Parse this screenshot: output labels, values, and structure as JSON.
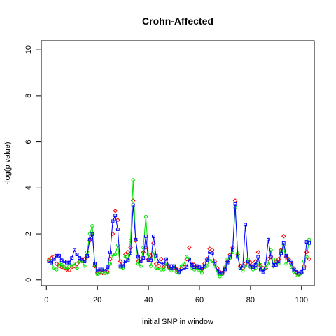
{
  "chart_data": {
    "type": "scatter",
    "title": "Crohn-Affected",
    "xlabel": "initial SNP in window",
    "ylabel": "-log(p value)",
    "xlim": [
      -2,
      105
    ],
    "ylim": [
      -0.25,
      10.4
    ],
    "xticks": [
      0,
      20,
      40,
      60,
      80,
      100
    ],
    "yticks": [
      0,
      2,
      4,
      6,
      8,
      10
    ],
    "grid": false,
    "legend": "none",
    "series": [
      {
        "color": "#ff0000",
        "marker": "diamond",
        "lines": false,
        "x": [
          1,
          2,
          3,
          4,
          5,
          6,
          7,
          8,
          9,
          10,
          11,
          12,
          13,
          14,
          15,
          16,
          17,
          18,
          19,
          20,
          21,
          22,
          23,
          24,
          25,
          26,
          27,
          28,
          29,
          30,
          31,
          32,
          33,
          34,
          35,
          36,
          37,
          38,
          39,
          40,
          41,
          42,
          43,
          44,
          45,
          46,
          47,
          48,
          49,
          50,
          51,
          52,
          53,
          54,
          55,
          56,
          57,
          58,
          59,
          60,
          61,
          62,
          63,
          64,
          65,
          66,
          67,
          68,
          69,
          70,
          71,
          72,
          73,
          74,
          75,
          76,
          77,
          78,
          79,
          80,
          81,
          82,
          83,
          84,
          85,
          86,
          87,
          88,
          89,
          90,
          91,
          92,
          93,
          94,
          95,
          96,
          97,
          98,
          99,
          100,
          101,
          102,
          103
        ],
        "y": [
          0.85,
          0.95,
          1.0,
          0.7,
          0.6,
          0.55,
          0.5,
          0.45,
          0.42,
          0.55,
          0.6,
          0.7,
          0.8,
          0.85,
          0.9,
          1.0,
          1.7,
          1.95,
          0.6,
          0.3,
          0.35,
          0.3,
          0.3,
          0.35,
          0.9,
          2.0,
          3.0,
          2.6,
          0.8,
          0.7,
          1.1,
          1.2,
          1.4,
          3.45,
          1.7,
          0.8,
          0.9,
          1.2,
          1.4,
          0.9,
          1.05,
          1.6,
          0.7,
          0.6,
          0.9,
          0.55,
          0.7,
          0.55,
          0.6,
          0.5,
          0.45,
          0.4,
          0.5,
          0.55,
          0.9,
          1.4,
          0.7,
          0.65,
          0.55,
          0.5,
          0.45,
          0.7,
          0.9,
          1.35,
          1.3,
          0.8,
          0.5,
          0.35,
          0.3,
          0.5,
          0.8,
          1.1,
          1.4,
          3.45,
          1.1,
          0.6,
          0.5,
          0.7,
          0.8,
          0.75,
          0.6,
          0.8,
          1.2,
          0.6,
          0.5,
          0.5,
          0.9,
          1.0,
          0.6,
          0.8,
          0.9,
          1.3,
          1.9,
          1.0,
          0.9,
          0.7,
          0.5,
          0.3,
          0.25,
          0.3,
          0.6,
          1.2,
          0.9
        ]
      },
      {
        "color": "#00e000",
        "marker": "circle",
        "lines": true,
        "x": [
          1,
          2,
          3,
          4,
          5,
          6,
          7,
          8,
          9,
          10,
          11,
          12,
          13,
          14,
          15,
          16,
          17,
          18,
          19,
          20,
          21,
          22,
          23,
          24,
          25,
          26,
          27,
          28,
          29,
          30,
          31,
          32,
          33,
          34,
          35,
          36,
          37,
          38,
          39,
          40,
          41,
          42,
          43,
          44,
          45,
          46,
          47,
          48,
          49,
          50,
          51,
          52,
          53,
          54,
          55,
          56,
          57,
          58,
          59,
          60,
          61,
          62,
          63,
          64,
          65,
          66,
          67,
          68,
          69,
          70,
          71,
          72,
          73,
          74,
          75,
          76,
          77,
          78,
          79,
          80,
          81,
          82,
          83,
          84,
          85,
          86,
          87,
          88,
          89,
          90,
          91,
          92,
          93,
          94,
          95,
          96,
          97,
          98,
          99,
          100,
          101,
          102,
          103
        ],
        "y": [
          0.9,
          0.8,
          0.5,
          0.45,
          0.7,
          0.65,
          0.55,
          0.5,
          0.75,
          0.6,
          0.7,
          0.5,
          0.9,
          0.8,
          0.6,
          1.2,
          2.0,
          2.35,
          0.65,
          0.25,
          0.3,
          0.35,
          0.3,
          0.3,
          0.7,
          1.1,
          1.1,
          1.5,
          0.55,
          0.5,
          1.0,
          0.9,
          1.7,
          4.35,
          1.75,
          0.7,
          0.6,
          1.4,
          2.75,
          1.1,
          0.6,
          1.2,
          0.5,
          0.5,
          0.45,
          0.45,
          0.7,
          0.5,
          0.4,
          0.55,
          0.35,
          0.3,
          0.6,
          0.7,
          1.0,
          0.9,
          0.5,
          0.45,
          0.5,
          0.4,
          0.3,
          0.55,
          0.6,
          0.9,
          0.8,
          0.6,
          0.3,
          0.15,
          0.25,
          0.55,
          0.9,
          0.95,
          1.2,
          3.15,
          1.15,
          0.5,
          0.4,
          0.6,
          0.9,
          0.55,
          0.45,
          0.5,
          0.7,
          0.65,
          0.4,
          0.55,
          0.7,
          1.3,
          0.6,
          0.9,
          0.7,
          1.25,
          1.5,
          0.7,
          0.9,
          0.55,
          0.35,
          0.2,
          0.2,
          0.3,
          0.8,
          1.0,
          1.75
        ]
      },
      {
        "color": "#0000ff",
        "marker": "square",
        "lines": true,
        "x": [
          1,
          2,
          3,
          4,
          5,
          6,
          7,
          8,
          9,
          10,
          11,
          12,
          13,
          14,
          15,
          16,
          17,
          18,
          19,
          20,
          21,
          22,
          23,
          24,
          25,
          26,
          27,
          28,
          29,
          30,
          31,
          32,
          33,
          34,
          35,
          36,
          37,
          38,
          39,
          40,
          41,
          42,
          43,
          44,
          45,
          46,
          47,
          48,
          49,
          50,
          51,
          52,
          53,
          54,
          55,
          56,
          57,
          58,
          59,
          60,
          61,
          62,
          63,
          64,
          65,
          66,
          67,
          68,
          69,
          70,
          71,
          72,
          73,
          74,
          75,
          76,
          77,
          78,
          79,
          80,
          81,
          82,
          83,
          84,
          85,
          86,
          87,
          88,
          89,
          90,
          91,
          92,
          93,
          94,
          95,
          96,
          97,
          98,
          99,
          100,
          101,
          102,
          103
        ],
        "y": [
          0.8,
          0.75,
          0.9,
          1.05,
          1.05,
          0.85,
          0.8,
          0.75,
          0.75,
          0.95,
          1.3,
          1.1,
          0.95,
          0.9,
          0.8,
          1.05,
          1.75,
          2.0,
          0.7,
          0.4,
          0.45,
          0.45,
          0.4,
          0.55,
          1.2,
          2.55,
          2.8,
          2.2,
          0.6,
          0.6,
          0.8,
          0.85,
          1.15,
          3.25,
          1.75,
          1.0,
          0.8,
          0.95,
          1.9,
          0.85,
          0.85,
          1.9,
          1.05,
          0.8,
          0.7,
          0.7,
          0.9,
          0.6,
          0.5,
          0.6,
          0.5,
          0.35,
          0.4,
          0.5,
          0.55,
          0.9,
          0.65,
          0.55,
          0.6,
          0.55,
          0.5,
          0.6,
          0.85,
          1.2,
          1.15,
          0.7,
          0.4,
          0.3,
          0.3,
          0.45,
          0.75,
          1.0,
          1.3,
          3.3,
          1.0,
          0.5,
          0.6,
          2.4,
          0.8,
          0.6,
          0.55,
          0.65,
          1.0,
          0.45,
          0.35,
          0.7,
          1.75,
          1.0,
          0.65,
          0.65,
          0.8,
          1.15,
          1.6,
          1.05,
          0.85,
          0.75,
          0.45,
          0.35,
          0.3,
          0.35,
          0.5,
          1.65,
          1.6
        ]
      }
    ]
  }
}
